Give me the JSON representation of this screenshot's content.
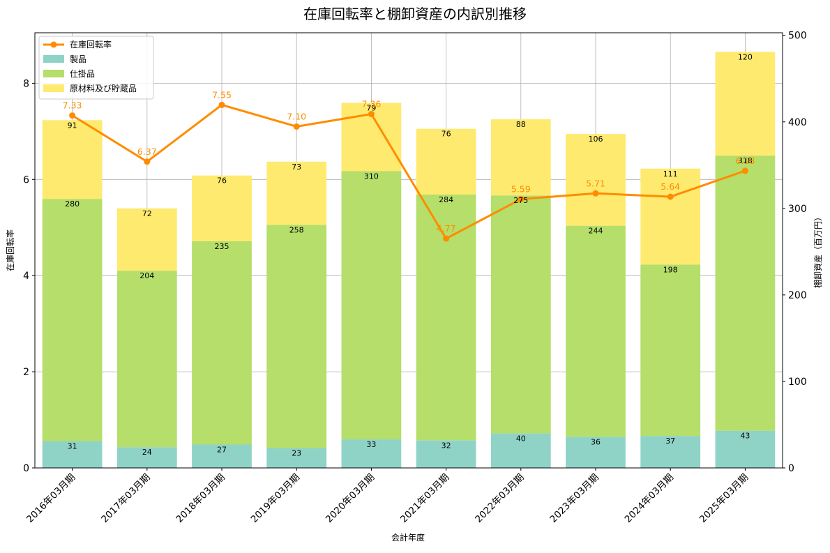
{
  "chart_data": {
    "type": "bar",
    "title": "在庫回転率と棚卸資産の内訳別推移",
    "xlabel": "会計年度",
    "ylabel_left": "在庫回転率",
    "ylabel_right": "棚卸資産（百万円）",
    "categories": [
      "2016年03月期",
      "2017年03月期",
      "2018年03月期",
      "2019年03月期",
      "2020年03月期",
      "2021年03月期",
      "2022年03月期",
      "2023年03月期",
      "2024年03月期",
      "2025年03月期"
    ],
    "stacked_series": [
      {
        "name": "製品",
        "color": "#8fd3c7",
        "values": [
          31,
          24,
          27,
          23,
          33,
          32,
          40,
          36,
          37,
          43
        ]
      },
      {
        "name": "仕掛品",
        "color": "#b5de6a",
        "values": [
          280,
          204,
          235,
          258,
          310,
          284,
          275,
          244,
          198,
          318
        ]
      },
      {
        "name": "原材料及び貯蔵品",
        "color": "#ffea70",
        "values": [
          91,
          72,
          76,
          73,
          79,
          76,
          88,
          106,
          111,
          120
        ]
      }
    ],
    "line_series": {
      "name": "在庫回転率",
      "color": "#ff8c00",
      "values": [
        7.33,
        6.37,
        7.55,
        7.1,
        7.36,
        4.77,
        5.59,
        5.71,
        5.64,
        6.18
      ]
    },
    "ylim_left": [
      0,
      9.05
    ],
    "ylim_right": [
      0,
      503
    ],
    "yticks_left": [
      0,
      2,
      4,
      6,
      8
    ],
    "yticks_right": [
      0,
      100,
      200,
      300,
      400,
      500
    ],
    "grid": true,
    "legend_position": "top-left"
  }
}
